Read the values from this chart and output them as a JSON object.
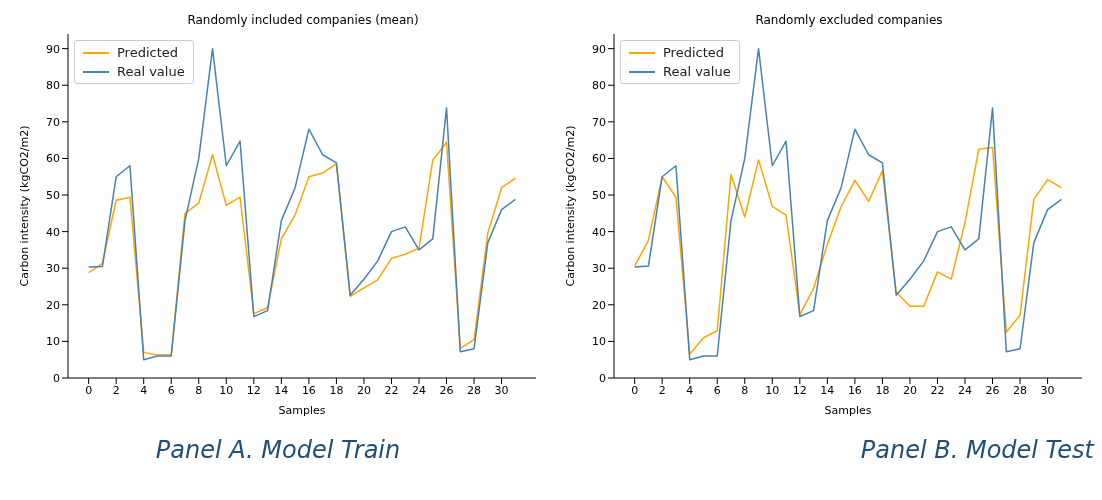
{
  "chart_data": [
    {
      "type": "line",
      "title": "Randomly included companies (mean)",
      "xlabel": "Samples",
      "ylabel": "Carbon intensity (kgCO2/m2)",
      "annotations": [
        "Panel A. Model Train"
      ],
      "x": [
        0,
        1,
        2,
        3,
        4,
        5,
        6,
        7,
        8,
        9,
        10,
        11,
        12,
        13,
        14,
        15,
        16,
        17,
        18,
        19,
        20,
        21,
        22,
        23,
        24,
        25,
        26,
        27,
        28,
        29,
        30,
        31
      ],
      "xlim": [
        -1.5,
        32.5
      ],
      "xticks": [
        0,
        2,
        4,
        6,
        8,
        10,
        12,
        14,
        16,
        18,
        20,
        22,
        24,
        26,
        28,
        30
      ],
      "ylim": [
        0,
        94
      ],
      "yticks": [
        0,
        10,
        20,
        30,
        40,
        50,
        60,
        70,
        80,
        90
      ],
      "legend": "top left",
      "grid": false,
      "series": [
        {
          "name": "Predicted",
          "color": "#ffa500",
          "values": [
            28.8,
            31.3,
            48.6,
            49.4,
            7,
            6.3,
            6.4,
            45,
            47.8,
            61,
            47.2,
            49.4,
            17.6,
            19.2,
            38,
            44.6,
            55,
            56,
            58.5,
            22.3,
            24.6,
            26.8,
            32.7,
            33.8,
            35.5,
            59.5,
            64.4,
            8.1,
            10.5,
            39.6,
            52,
            54.6
          ]
        },
        {
          "name": "Real value",
          "color": "#4682b4",
          "values": [
            30.3,
            30.5,
            55,
            58,
            5,
            6,
            6,
            43,
            60,
            90,
            58,
            64.7,
            16.8,
            18.4,
            43,
            52,
            68,
            61,
            58.8,
            22.6,
            27,
            32,
            40,
            41.3,
            35,
            38,
            73.8,
            7.2,
            8,
            37,
            46,
            48.8
          ]
        }
      ]
    },
    {
      "type": "line",
      "title": "Randomly excluded companies",
      "xlabel": "Samples",
      "ylabel": "Carbon intensity (kgCO2/m2)",
      "annotations": [
        "Panel B. Model Test"
      ],
      "x": [
        0,
        1,
        2,
        3,
        4,
        5,
        6,
        7,
        8,
        9,
        10,
        11,
        12,
        13,
        14,
        15,
        16,
        17,
        18,
        19,
        20,
        21,
        22,
        23,
        24,
        25,
        26,
        27,
        28,
        29,
        30,
        31
      ],
      "xlim": [
        -1.5,
        32.5
      ],
      "xticks": [
        0,
        2,
        4,
        6,
        8,
        10,
        12,
        14,
        16,
        18,
        20,
        22,
        24,
        26,
        28,
        30
      ],
      "ylim": [
        0,
        94
      ],
      "yticks": [
        0,
        10,
        20,
        30,
        40,
        50,
        60,
        70,
        80,
        90
      ],
      "legend": "top left",
      "grid": false,
      "series": [
        {
          "name": "Predicted",
          "color": "#ffa500",
          "values": [
            30.6,
            37.6,
            55,
            49.4,
            6.5,
            11,
            12.9,
            55.6,
            44,
            59.6,
            46.9,
            44.5,
            17.3,
            24.5,
            36.5,
            46.8,
            54,
            48.3,
            56.6,
            23.5,
            19.6,
            19.6,
            29,
            27,
            42.5,
            62.5,
            63,
            12.5,
            17.2,
            48.8,
            54.2,
            52
          ]
        },
        {
          "name": "Real value",
          "color": "#4682b4",
          "values": [
            30.3,
            30.6,
            55,
            58,
            5,
            6,
            6,
            43,
            60,
            90,
            58,
            64.7,
            16.8,
            18.4,
            43,
            52,
            68,
            61,
            58.8,
            22.6,
            27,
            32,
            40,
            41.3,
            35,
            38,
            73.8,
            7.2,
            8,
            37,
            46,
            48.8
          ]
        }
      ]
    }
  ]
}
